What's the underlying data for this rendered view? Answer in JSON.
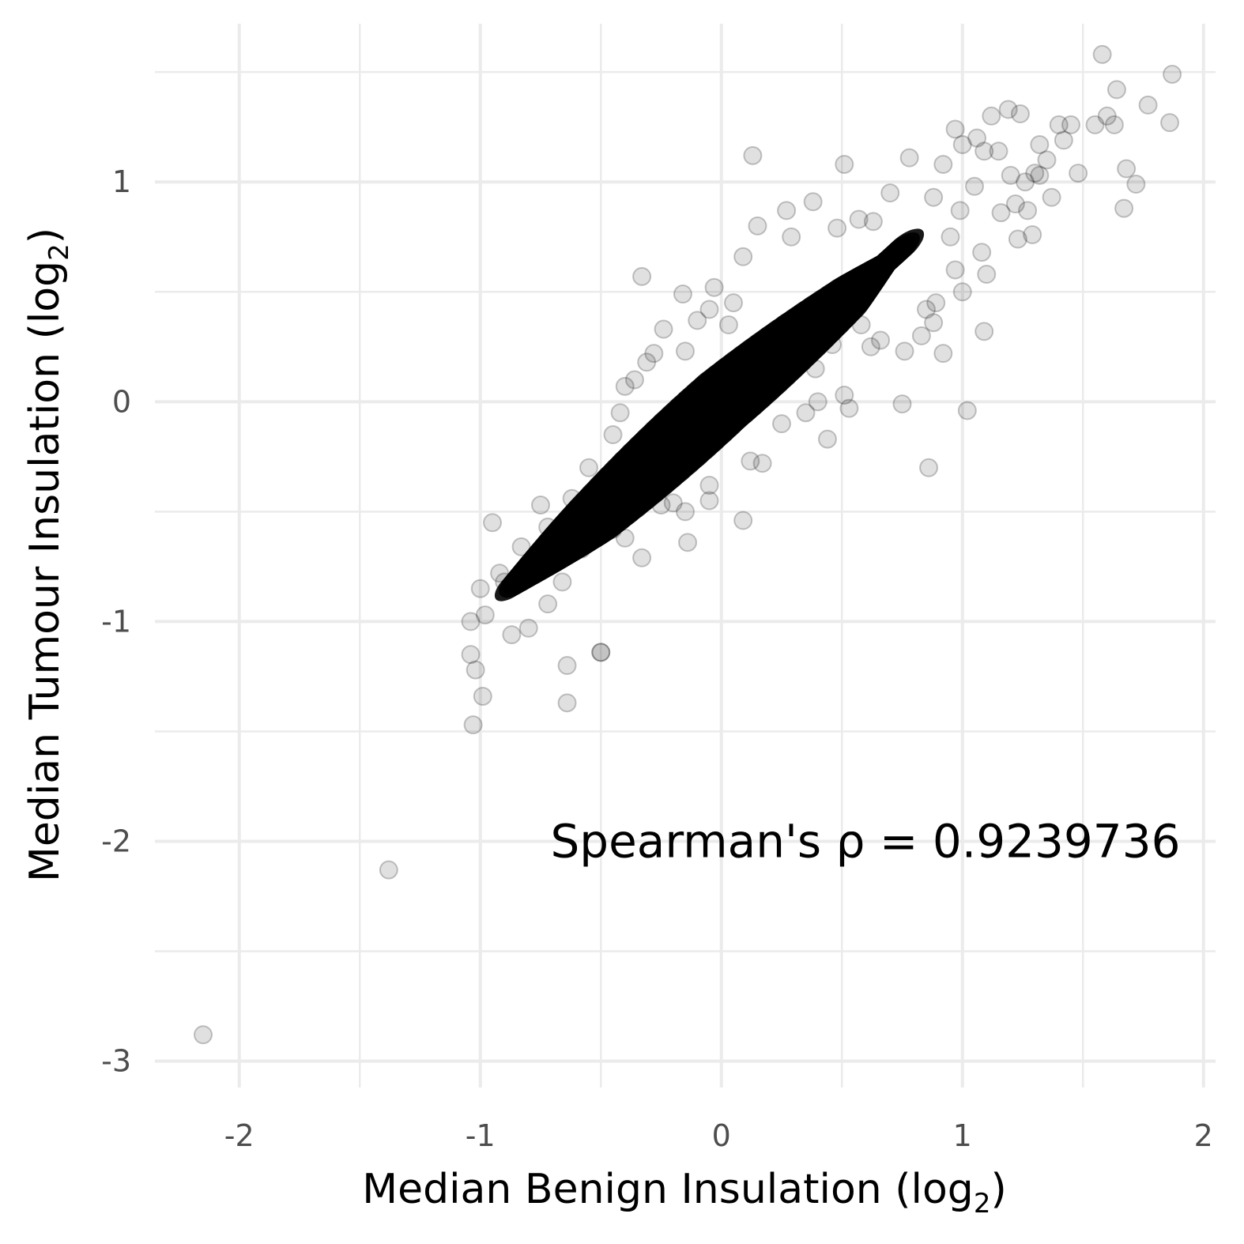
{
  "chart_data": {
    "type": "scatter",
    "xlabel_main": "Median Benign Insulation (log",
    "xlabel_sub": "2",
    "xlabel_close": ")",
    "ylabel_main": "Median Tumour Insulation (log",
    "ylabel_sub": "2",
    "ylabel_close": ")",
    "xlim": [
      -2.35,
      2.05
    ],
    "ylim": [
      -3.12,
      1.72
    ],
    "x_ticks": [
      -2,
      -1,
      0,
      1,
      2
    ],
    "y_ticks": [
      -3,
      -2,
      -1,
      0,
      1
    ],
    "x_tick_labels": [
      "-2",
      "-1",
      "0",
      "1",
      "2"
    ],
    "y_tick_labels": [
      "-3",
      "-2",
      "-1",
      "0",
      "1"
    ],
    "annotation": {
      "text": "Spearman's ρ = 0.9239736",
      "x": 0.45,
      "y": -2.0
    },
    "point_color": "#000000",
    "point_alpha": 0.12,
    "grid": true,
    "legend": "none",
    "core_band": {
      "description_points": [
        [
          -0.85,
          -0.82
        ],
        [
          -0.5,
          -0.5
        ],
        [
          0,
          0
        ],
        [
          0.5,
          0.45
        ],
        [
          0.75,
          0.7
        ]
      ]
    },
    "points": [
      [
        -2.15,
        -2.88
      ],
      [
        -1.38,
        -2.13
      ],
      [
        -1.03,
        -1.47
      ],
      [
        -0.99,
        -1.34
      ],
      [
        -1.02,
        -1.22
      ],
      [
        -1.04,
        -1.15
      ],
      [
        -0.64,
        -1.37
      ],
      [
        -0.64,
        -1.2
      ],
      [
        -0.5,
        -1.14
      ],
      [
        -0.5,
        -1.14
      ],
      [
        -1.04,
        -1.0
      ],
      [
        -0.87,
        -1.06
      ],
      [
        -0.8,
        -1.03
      ],
      [
        -0.98,
        -0.97
      ],
      [
        -1.0,
        -0.85
      ],
      [
        -0.9,
        -0.82
      ],
      [
        -0.92,
        -0.78
      ],
      [
        -0.72,
        -0.92
      ],
      [
        -0.95,
        -0.55
      ],
      [
        -0.83,
        -0.66
      ],
      [
        -0.75,
        -0.47
      ],
      [
        -0.33,
        0.57
      ],
      [
        -0.4,
        0.07
      ],
      [
        -0.31,
        0.18
      ],
      [
        -0.28,
        0.22
      ],
      [
        -0.24,
        0.33
      ],
      [
        -0.16,
        0.49
      ],
      [
        -0.03,
        0.52
      ],
      [
        -0.1,
        0.37
      ],
      [
        -0.15,
        0.23
      ],
      [
        0.03,
        0.35
      ],
      [
        0.09,
        0.66
      ],
      [
        0.15,
        0.8
      ],
      [
        0.13,
        1.12
      ],
      [
        0.27,
        0.87
      ],
      [
        0.38,
        0.91
      ],
      [
        0.51,
        1.08
      ],
      [
        0.48,
        0.79
      ],
      [
        0.29,
        0.75
      ],
      [
        -0.33,
        -0.71
      ],
      [
        -0.14,
        -0.64
      ],
      [
        -0.15,
        -0.5
      ],
      [
        -0.05,
        -0.45
      ],
      [
        0.09,
        -0.54
      ],
      [
        0.12,
        -0.27
      ],
      [
        0.17,
        -0.28
      ],
      [
        0.44,
        -0.17
      ],
      [
        0.51,
        0.03
      ],
      [
        0.53,
        -0.03
      ],
      [
        0.39,
        0.15
      ],
      [
        0.46,
        0.26
      ],
      [
        0.62,
        0.25
      ],
      [
        0.75,
        -0.01
      ],
      [
        0.76,
        0.23
      ],
      [
        0.86,
        -0.3
      ],
      [
        0.83,
        0.3
      ],
      [
        0.88,
        0.36
      ],
      [
        0.92,
        0.22
      ],
      [
        1.02,
        -0.04
      ],
      [
        1.09,
        0.32
      ],
      [
        1.0,
        0.5
      ],
      [
        0.97,
        0.6
      ],
      [
        1.1,
        0.58
      ],
      [
        1.08,
        0.68
      ],
      [
        1.16,
        0.86
      ],
      [
        1.23,
        0.74
      ],
      [
        1.29,
        0.76
      ],
      [
        1.22,
        0.9
      ],
      [
        1.27,
        0.87
      ],
      [
        0.78,
        1.11
      ],
      [
        0.92,
        1.08
      ],
      [
        0.97,
        1.24
      ],
      [
        1.0,
        1.17
      ],
      [
        1.06,
        1.2
      ],
      [
        1.09,
        1.14
      ],
      [
        1.12,
        1.3
      ],
      [
        1.19,
        1.33
      ],
      [
        1.24,
        1.31
      ],
      [
        1.3,
        1.04
      ],
      [
        1.32,
        1.17
      ],
      [
        1.37,
        0.93
      ],
      [
        1.32,
        1.03
      ],
      [
        1.2,
        1.03
      ],
      [
        1.26,
        1.0
      ],
      [
        1.4,
        1.26
      ],
      [
        1.45,
        1.26
      ],
      [
        1.48,
        1.04
      ],
      [
        1.55,
        1.26
      ],
      [
        1.6,
        1.3
      ],
      [
        1.58,
        1.58
      ],
      [
        1.64,
        1.42
      ],
      [
        1.67,
        0.88
      ],
      [
        1.68,
        1.06
      ],
      [
        1.72,
        0.99
      ],
      [
        1.77,
        1.35
      ],
      [
        1.86,
        1.27
      ],
      [
        1.87,
        1.49
      ],
      [
        1.63,
        1.26
      ],
      [
        1.42,
        1.19
      ],
      [
        1.35,
        1.1
      ],
      [
        1.15,
        1.14
      ],
      [
        1.05,
        0.98
      ],
      [
        0.99,
        0.87
      ],
      [
        0.89,
        0.45
      ],
      [
        0.85,
        0.42
      ],
      [
        0.95,
        0.75
      ],
      [
        0.88,
        0.93
      ],
      [
        0.63,
        0.82
      ],
      [
        0.57,
        0.83
      ],
      [
        0.7,
        0.95
      ],
      [
        0.66,
        0.28
      ],
      [
        0.58,
        0.35
      ],
      [
        0.4,
        0.0
      ],
      [
        0.35,
        -0.05
      ],
      [
        0.25,
        -0.1
      ],
      [
        -0.05,
        -0.38
      ],
      [
        -0.2,
        -0.46
      ],
      [
        -0.25,
        -0.47
      ],
      [
        -0.05,
        0.42
      ],
      [
        0.05,
        0.45
      ],
      [
        -0.45,
        -0.15
      ],
      [
        -0.42,
        -0.05
      ],
      [
        -0.36,
        0.1
      ],
      [
        -0.55,
        -0.3
      ],
      [
        -0.62,
        -0.44
      ],
      [
        -0.72,
        -0.57
      ],
      [
        -0.66,
        -0.82
      ],
      [
        -0.58,
        -0.67
      ],
      [
        -0.4,
        -0.62
      ],
      [
        -0.45,
        -0.58
      ]
    ]
  }
}
